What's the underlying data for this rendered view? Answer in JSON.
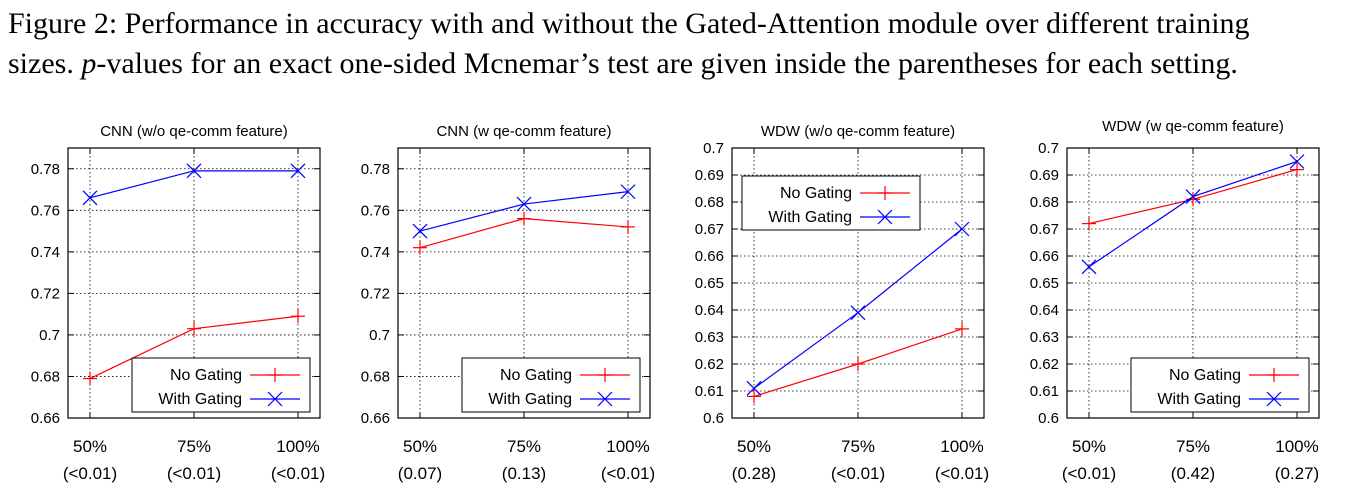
{
  "caption": {
    "line1": "Figure 2: Performance in accuracy with and without the Gated-Attention module over different training",
    "line2_var": "p",
    "line2_rest": "-values for an exact one-sided Mcnemar’s test are given inside the parentheses for each setting.",
    "line2_prefix": "sizes. "
  },
  "chart_data": [
    {
      "type": "line",
      "title": "CNN (w/o qe-comm feature)",
      "categories": [
        "50%",
        "75%",
        "100%"
      ],
      "pvalues": [
        "(<0.01)",
        "(<0.01)",
        "(<0.01)"
      ],
      "ylim": [
        0.66,
        0.79
      ],
      "yticks": [
        0.66,
        0.68,
        0.7,
        0.72,
        0.74,
        0.76,
        0.78
      ],
      "yticklabels": [
        "0.66",
        "0.68",
        "0.7",
        "0.72",
        "0.74",
        "0.76",
        "0.78"
      ],
      "legend": "bottom-right",
      "grid": true,
      "series": [
        {
          "name": "No Gating",
          "color": "#ff0000",
          "marker": "plus",
          "values": [
            0.679,
            0.703,
            0.709
          ]
        },
        {
          "name": "With Gating",
          "color": "#0000ff",
          "marker": "x",
          "values": [
            0.766,
            0.779,
            0.779
          ]
        }
      ]
    },
    {
      "type": "line",
      "title": "CNN (w qe-comm feature)",
      "categories": [
        "50%",
        "75%",
        "100%"
      ],
      "pvalues": [
        "(0.07)",
        "(0.13)",
        "(<0.01)"
      ],
      "ylim": [
        0.66,
        0.79
      ],
      "yticks": [
        0.66,
        0.68,
        0.7,
        0.72,
        0.74,
        0.76,
        0.78
      ],
      "yticklabels": [
        "0.66",
        "0.68",
        "0.7",
        "0.72",
        "0.74",
        "0.76",
        "0.78"
      ],
      "legend": "bottom-right",
      "grid": true,
      "series": [
        {
          "name": "No Gating",
          "color": "#ff0000",
          "marker": "plus",
          "values": [
            0.742,
            0.756,
            0.752
          ]
        },
        {
          "name": "With Gating",
          "color": "#0000ff",
          "marker": "x",
          "values": [
            0.75,
            0.763,
            0.769
          ]
        }
      ]
    },
    {
      "type": "line",
      "title": "WDW (w/o qe-comm feature)",
      "categories": [
        "50%",
        "75%",
        "100%"
      ],
      "pvalues": [
        "(0.28)",
        "(<0.01)",
        "(<0.01)"
      ],
      "ylim": [
        0.6,
        0.7
      ],
      "yticks": [
        0.6,
        0.61,
        0.62,
        0.63,
        0.64,
        0.65,
        0.66,
        0.67,
        0.68,
        0.69,
        0.7
      ],
      "yticklabels": [
        "0.6",
        "0.61",
        "0.62",
        "0.63",
        "0.64",
        "0.65",
        "0.66",
        "0.67",
        "0.68",
        "0.69",
        "0.7"
      ],
      "legend": "top-left",
      "grid": true,
      "series": [
        {
          "name": "No Gating",
          "color": "#ff0000",
          "marker": "plus",
          "values": [
            0.608,
            0.62,
            0.633
          ]
        },
        {
          "name": "With Gating",
          "color": "#0000ff",
          "marker": "x",
          "values": [
            0.611,
            0.639,
            0.67
          ]
        }
      ]
    },
    {
      "type": "line",
      "title": "WDW (w qe-comm feature)",
      "categories": [
        "50%",
        "75%",
        "100%"
      ],
      "pvalues": [
        "(<0.01)",
        "(0.42)",
        "(0.27)"
      ],
      "ylim": [
        0.6,
        0.7
      ],
      "yticks": [
        0.6,
        0.61,
        0.62,
        0.63,
        0.64,
        0.65,
        0.66,
        0.67,
        0.68,
        0.69,
        0.7
      ],
      "yticklabels": [
        "0.6",
        "0.61",
        "0.62",
        "0.63",
        "0.64",
        "0.65",
        "0.66",
        "0.67",
        "0.68",
        "0.69",
        "0.7"
      ],
      "legend": "bottom-right",
      "grid": true,
      "series": [
        {
          "name": "No Gating",
          "color": "#ff0000",
          "marker": "plus",
          "values": [
            0.672,
            0.681,
            0.692
          ]
        },
        {
          "name": "With Gating",
          "color": "#0000ff",
          "marker": "x",
          "values": [
            0.656,
            0.682,
            0.695
          ]
        }
      ]
    }
  ]
}
